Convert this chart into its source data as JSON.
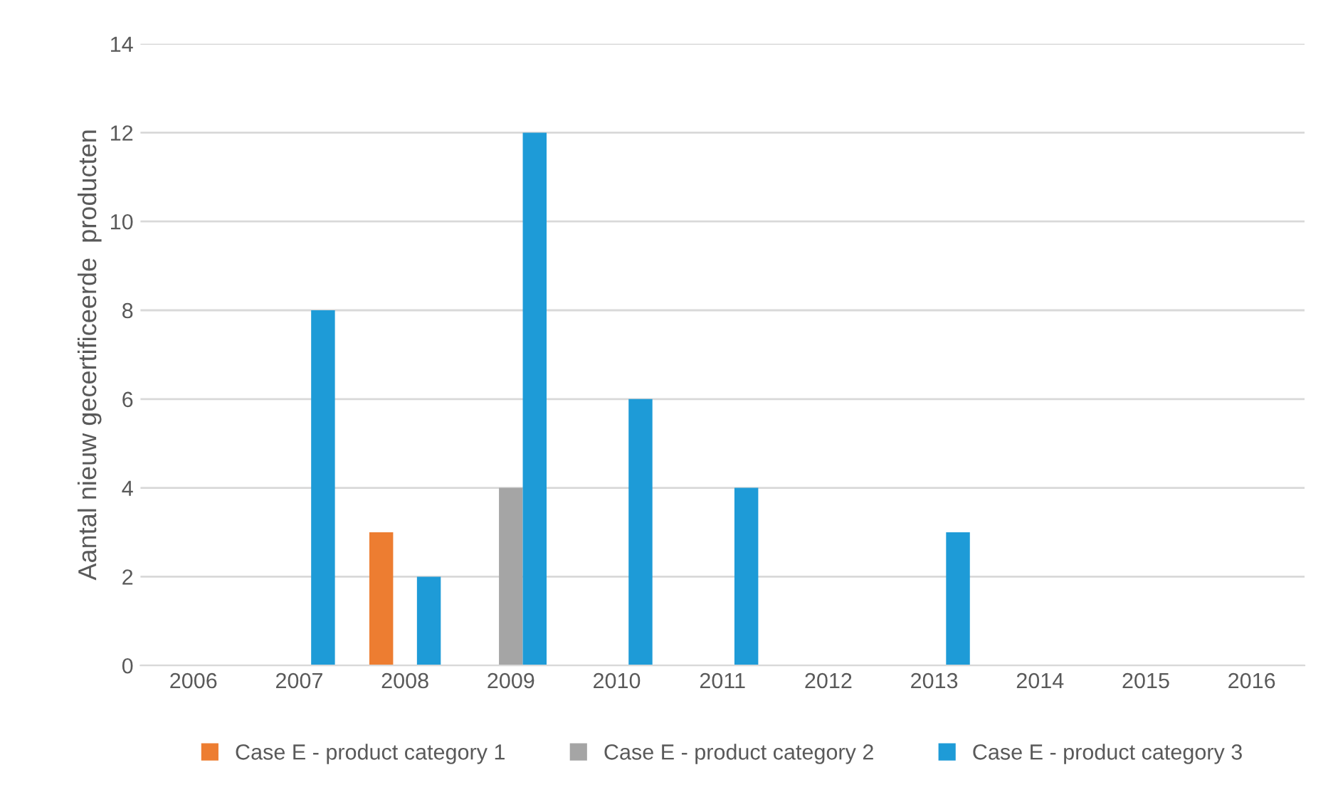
{
  "chart_data": {
    "type": "bar",
    "ylabel": "Aantal nieuw gecertificeerde  producten",
    "categories": [
      "2006",
      "2007",
      "2008",
      "2009",
      "2010",
      "2011",
      "2012",
      "2013",
      "2014",
      "2015",
      "2016"
    ],
    "series": [
      {
        "name": "Case E - product category 1",
        "color": "#ed7d31",
        "values": [
          0,
          0,
          3,
          0,
          0,
          0,
          0,
          0,
          0,
          0,
          0
        ]
      },
      {
        "name": "Case E - product category 2",
        "color": "#a5a5a5",
        "values": [
          0,
          0,
          0,
          4,
          0,
          0,
          0,
          0,
          0,
          0,
          0
        ]
      },
      {
        "name": "Case E - product category 3",
        "color": "#1e9bd7",
        "values": [
          0,
          8,
          2,
          12,
          6,
          4,
          0,
          3,
          0,
          0,
          0
        ]
      }
    ],
    "ylim": [
      0,
      14
    ],
    "yticks": [
      0,
      2,
      4,
      6,
      8,
      10,
      12,
      14
    ],
    "grid": "y",
    "legend": "bottom"
  }
}
